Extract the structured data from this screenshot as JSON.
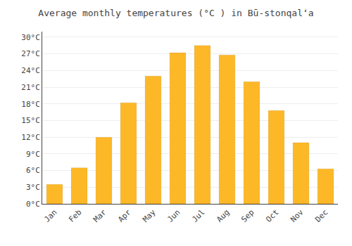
{
  "chart_data": {
    "type": "bar",
    "title": "Average monthly temperatures (°C ) in Bū-stonqalʻa",
    "categories": [
      "Jan",
      "Feb",
      "Mar",
      "Apr",
      "May",
      "Jun",
      "Jul",
      "Aug",
      "Sep",
      "Oct",
      "Nov",
      "Dec"
    ],
    "values": [
      3.5,
      6.5,
      12.0,
      18.2,
      23.0,
      27.2,
      28.5,
      26.8,
      22.0,
      16.8,
      11.0,
      6.3
    ],
    "color": "#FDB827",
    "ylim": [
      0,
      31
    ],
    "yticks": [
      {
        "value": 0,
        "label": "0°C"
      },
      {
        "value": 3,
        "label": "3°C"
      },
      {
        "value": 6,
        "label": "6°C"
      },
      {
        "value": 9,
        "label": "9°C"
      },
      {
        "value": 12,
        "label": "12°C"
      },
      {
        "value": 15,
        "label": "15°C"
      },
      {
        "value": 18,
        "label": "18°C"
      },
      {
        "value": 21,
        "label": "21°C"
      },
      {
        "value": 24,
        "label": "24°C"
      },
      {
        "value": 27,
        "label": "27°C"
      },
      {
        "value": 30,
        "label": "30°C"
      }
    ],
    "grid": true
  }
}
